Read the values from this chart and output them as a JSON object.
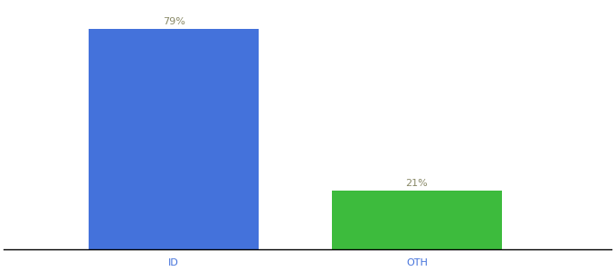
{
  "categories": [
    "ID",
    "OTH"
  ],
  "values": [
    79,
    21
  ],
  "bar_colors": [
    "#4472db",
    "#3dbb3d"
  ],
  "label_texts": [
    "79%",
    "21%"
  ],
  "label_color": "#888866",
  "label_fontsize": 8,
  "tick_fontsize": 8,
  "tick_color": "#4472db",
  "background_color": "#ffffff",
  "ylim": [
    0,
    88
  ],
  "bar_width": 0.28,
  "x_positions": [
    0.28,
    0.68
  ],
  "xlim": [
    0.0,
    1.0
  ],
  "figsize": [
    6.8,
    3.0
  ],
  "dpi": 100
}
